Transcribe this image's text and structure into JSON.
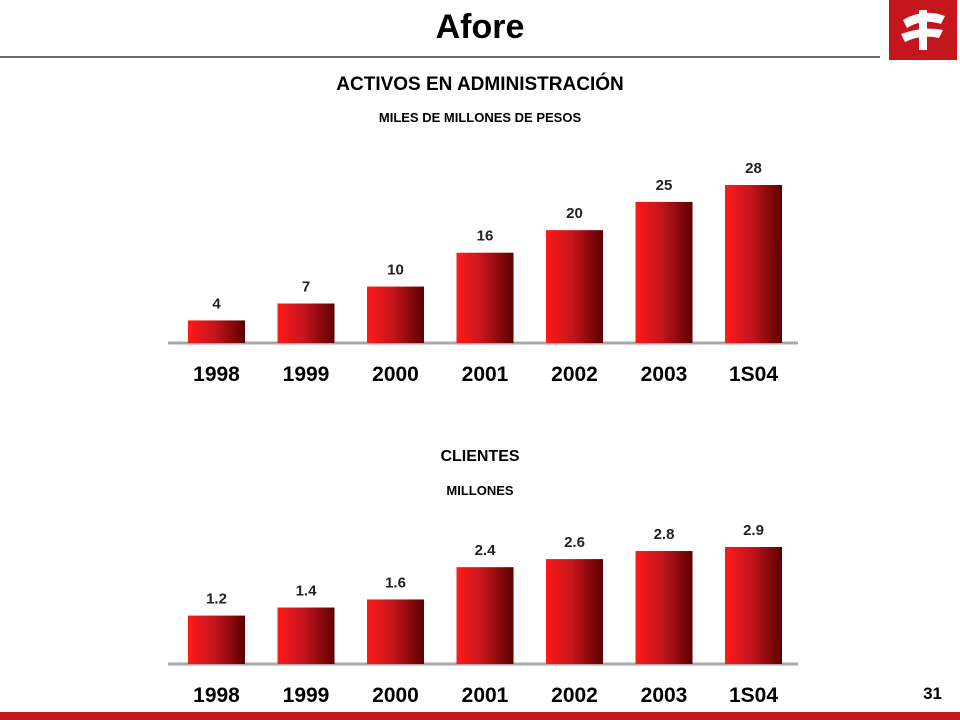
{
  "page": {
    "title": "Afore",
    "page_number": "31",
    "accent_color": "#c4161c"
  },
  "logo": {
    "icon": "bank-logo-icon"
  },
  "chart_data": [
    {
      "type": "bar",
      "title": "ACTIVOS EN ADMINISTRACIÓN",
      "subtitle": "MILES DE MILLONES DE PESOS",
      "categories": [
        "1998",
        "1999",
        "2000",
        "2001",
        "2002",
        "2003",
        "1S04"
      ],
      "values": [
        4,
        7,
        10,
        16,
        20,
        25,
        28
      ],
      "value_labels": [
        "4",
        "7",
        "10",
        "16",
        "20",
        "25",
        "28"
      ],
      "ylim": [
        0,
        28
      ],
      "grid": false,
      "bar_color": "#c4161c"
    },
    {
      "type": "bar",
      "title": "CLIENTES",
      "subtitle": "MILLONES",
      "categories": [
        "1998",
        "1999",
        "2000",
        "2001",
        "2002",
        "2003",
        "1S04"
      ],
      "values": [
        1.2,
        1.4,
        1.6,
        2.4,
        2.6,
        2.8,
        2.9
      ],
      "value_labels": [
        "1.2",
        "1.4",
        "1.6",
        "2.4",
        "2.6",
        "2.8",
        "2.9"
      ],
      "ylim": [
        0,
        2.9
      ],
      "grid": false,
      "bar_color": "#c4161c"
    }
  ]
}
